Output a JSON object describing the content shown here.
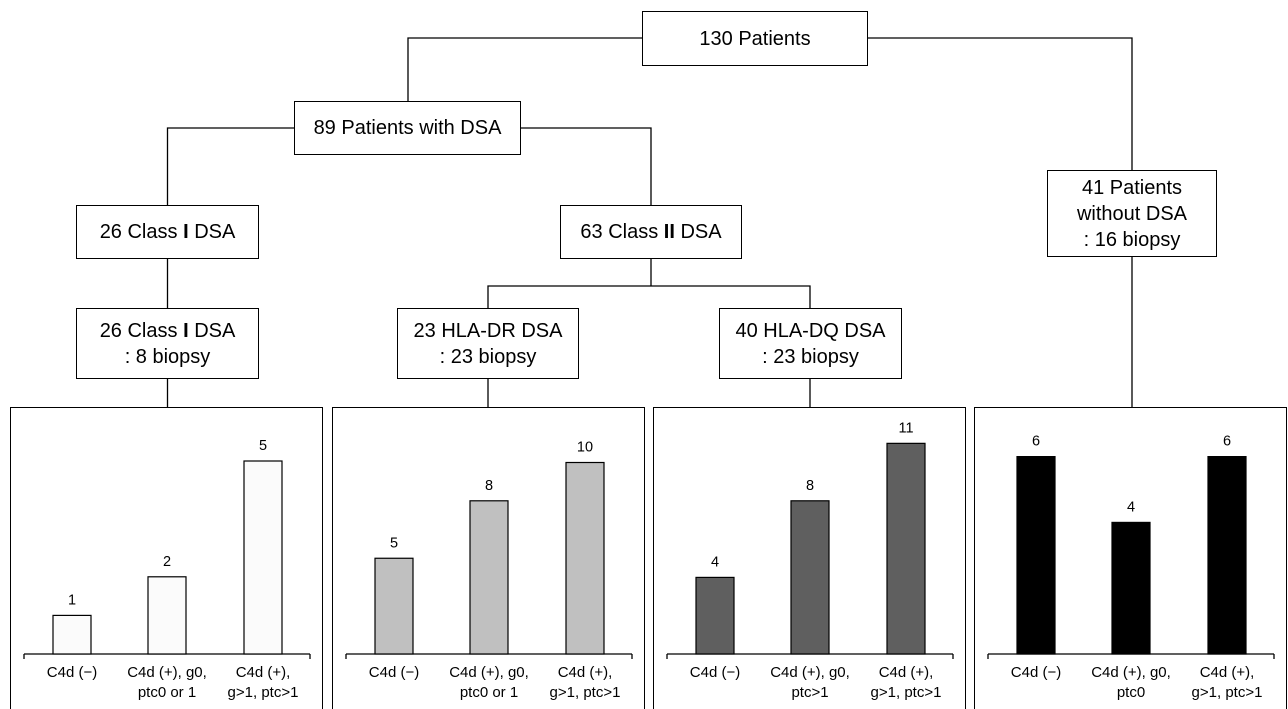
{
  "nodes": {
    "total": {
      "label": "130 Patients"
    },
    "with_dsa": {
      "label": "89 Patients with DSA"
    },
    "class_i": {
      "prefix": "26 Class",
      "numeral": "I",
      "suffix": "DSA"
    },
    "class_ii": {
      "prefix": "63 Class",
      "numeral": "II",
      "suffix": "DSA"
    },
    "class_i_biopsy": {
      "prefix": "26 Class",
      "numeral": "I",
      "suffix": "DSA",
      "biopsy": ": 8 biopsy"
    },
    "hla_dr": {
      "label": "23 HLA-DR DSA",
      "biopsy": ": 23 biopsy"
    },
    "hla_dq": {
      "label": "40 HLA-DQ DSA",
      "biopsy": ": 23 biopsy"
    },
    "without_dsa": {
      "lines": [
        "41 Patients",
        "without DSA",
        ": 16 biopsy"
      ]
    }
  },
  "chart_data": [
    {
      "type": "bar",
      "categories": [
        [
          "C4d (−)"
        ],
        [
          "C4d (+), g0,",
          "ptc0 or 1"
        ],
        [
          "C4d (+),",
          "g>1, ptc>1"
        ]
      ],
      "values": [
        1,
        2,
        5
      ],
      "color": "#fbfbfb",
      "grid": false
    },
    {
      "type": "bar",
      "categories": [
        [
          "C4d (−)"
        ],
        [
          "C4d (+), g0,",
          "ptc0 or 1"
        ],
        [
          "C4d (+),",
          "g>1, ptc>1"
        ]
      ],
      "values": [
        5,
        8,
        10
      ],
      "color": "#c0c0c0",
      "grid": false
    },
    {
      "type": "bar",
      "categories": [
        [
          "C4d (−)"
        ],
        [
          "C4d (+), g0,",
          "ptc>1"
        ],
        [
          "C4d (+),",
          "g>1, ptc>1"
        ]
      ],
      "values": [
        4,
        8,
        11
      ],
      "color": "#5f5f5f",
      "grid": false
    },
    {
      "type": "bar",
      "categories": [
        [
          "C4d (−)"
        ],
        [
          "C4d (+), g0,",
          "ptc0"
        ],
        [
          "C4d (+),",
          "g>1, ptc>1"
        ]
      ],
      "values": [
        6,
        4,
        6
      ],
      "color": "#000000",
      "grid": false
    }
  ]
}
